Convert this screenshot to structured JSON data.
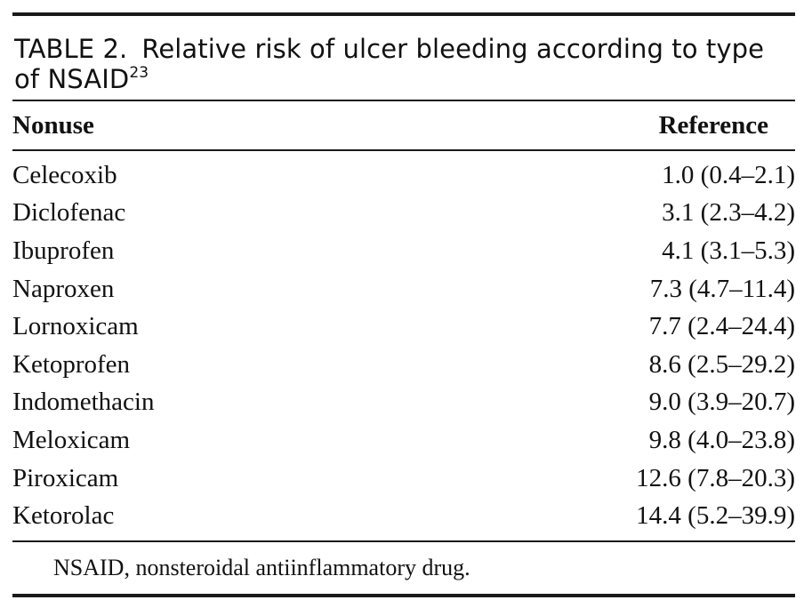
{
  "table": {
    "caption_label": "TABLE 2.",
    "caption_text": "Relative risk of ulcer bleeding according to type of NSAID",
    "caption_ref": "23",
    "header": {
      "left": "Nonuse",
      "right": "Reference"
    },
    "rows": [
      {
        "drug": "Celecoxib",
        "risk": "1.0 (0.4–2.1)"
      },
      {
        "drug": "Diclofenac",
        "risk": "3.1 (2.3–4.2)"
      },
      {
        "drug": "Ibuprofen",
        "risk": "4.1 (3.1–5.3)"
      },
      {
        "drug": "Naproxen",
        "risk": "7.3 (4.7–11.4)"
      },
      {
        "drug": "Lornoxicam",
        "risk": "7.7 (2.4–24.4)"
      },
      {
        "drug": "Ketoprofen",
        "risk": "8.6 (2.5–29.2)"
      },
      {
        "drug": "Indomethacin",
        "risk": "9.0 (3.9–20.7)"
      },
      {
        "drug": "Meloxicam",
        "risk": "9.8 (4.0–23.8)"
      },
      {
        "drug": "Piroxicam",
        "risk": "12.6 (7.8–20.3)"
      },
      {
        "drug": "Ketorolac",
        "risk": "14.4 (5.2–39.9)"
      }
    ],
    "footnote": "NSAID, nonsteroidal antiinflammatory drug."
  }
}
